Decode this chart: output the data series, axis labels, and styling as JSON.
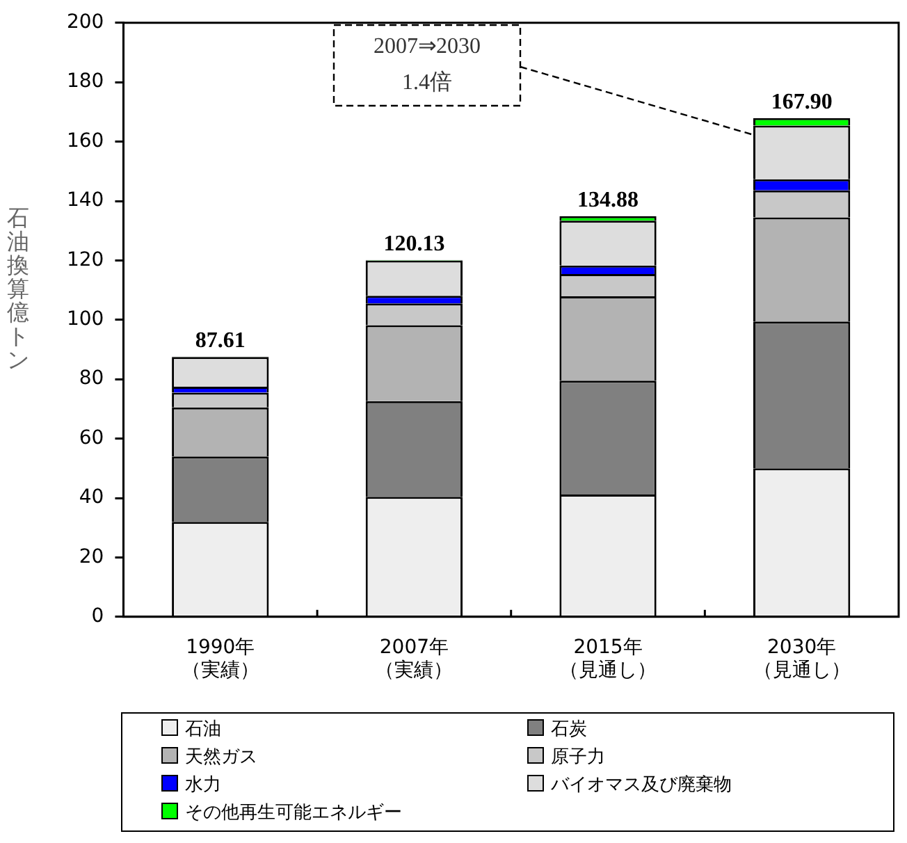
{
  "chart_data": {
    "type": "bar",
    "stacked": true,
    "ylabel": "石油換算億トン",
    "categories": [
      "1990年（実績）",
      "2007年（実績）",
      "2015年（見通し）",
      "2030年（見通し）"
    ],
    "series": [
      {
        "name": "石油",
        "color": "#eeeeee",
        "values": [
          32,
          40.4,
          41.2,
          50
        ]
      },
      {
        "name": "石炭",
        "color": "#808080",
        "values": [
          22,
          32.2,
          38.3,
          49.4
        ]
      },
      {
        "name": "天然ガス",
        "color": "#b3b3b3",
        "values": [
          16.5,
          25.6,
          28.4,
          35.1
        ]
      },
      {
        "name": "原子力",
        "color": "#c8c8c8",
        "values": [
          5,
          7.3,
          7.5,
          9.1
        ]
      },
      {
        "name": "水力",
        "color": "#0000ff",
        "values": [
          2,
          2.6,
          2.9,
          3.7
        ]
      },
      {
        "name": "バイオマス及び廃棄物",
        "color": "#dddddd",
        "values": [
          10,
          11.9,
          15.08,
          18.1
        ]
      },
      {
        "name": "その他再生可能エネルギー",
        "color": "#00ff00",
        "values": [
          0.11,
          0.13,
          1.5,
          2.5
        ]
      }
    ],
    "totals": [
      "87.61",
      "120.13",
      "134.88",
      "167.90"
    ],
    "annotations": [
      "2007⇒2030\n1.4倍"
    ],
    "ylim": [
      0,
      200
    ],
    "yticks": [
      0,
      20,
      40,
      60,
      80,
      100,
      120,
      140,
      160,
      180,
      200
    ],
    "grid": false,
    "legend": "bottom"
  }
}
